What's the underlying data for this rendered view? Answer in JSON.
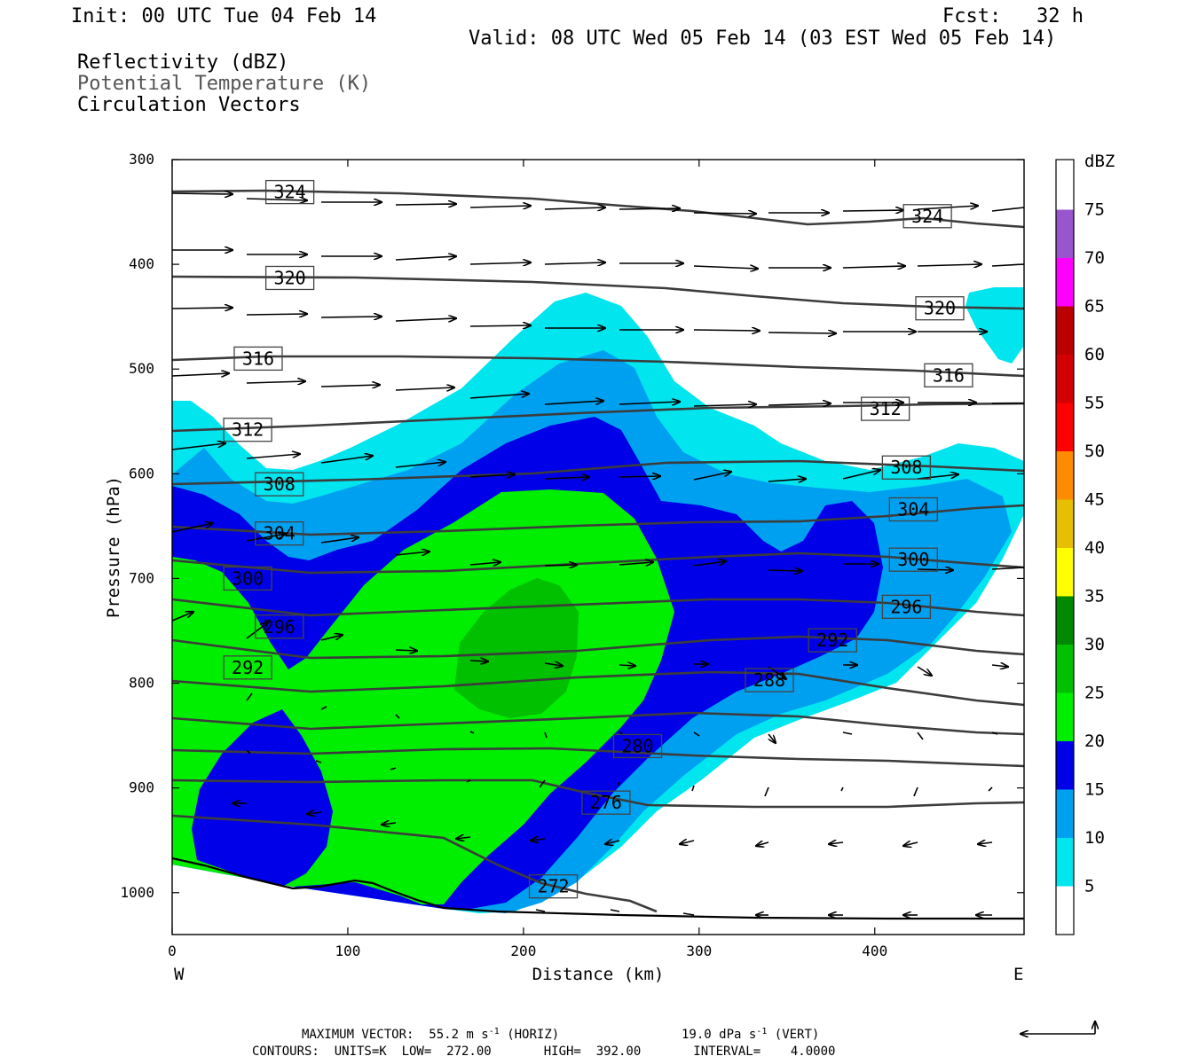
{
  "header": {
    "init": "Init: 00 UTC Tue 04 Feb 14",
    "fcst": "Fcst:   32 h",
    "valid": "Valid: 08 UTC Wed 05 Feb 14 (03 EST Wed 05 Feb 14)",
    "field1": "Reflectivity (dBZ)",
    "field2": "Potential Temperature (K)",
    "field3": "Circulation Vectors"
  },
  "axes": {
    "ylabel": "Pressure (hPa)",
    "xlabel": "Distance (km)",
    "west": "W",
    "east": "E",
    "colorbar_unit": "dBZ"
  },
  "footer": {
    "line1a": "MAXIMUM VECTOR:  55.2 m s",
    "line1a_sup": "-1",
    "line1b": " (HORIZ)",
    "line1c": "19.0 dPa s",
    "line1c_sup": "-1",
    "line1d": " (VERT)",
    "line2": "CONTOURS:  UNITS=K  LOW=  272.00       HIGH=  392.00       INTERVAL=    4.0000"
  },
  "chart_data": {
    "type": "contour",
    "xlim": [
      0,
      485
    ],
    "ylim": [
      300,
      1040
    ],
    "y_inverted": true,
    "xticks": [
      0,
      100,
      200,
      300,
      400
    ],
    "yticks": [
      300,
      400,
      500,
      600,
      700,
      800,
      900,
      1000
    ],
    "colorbar": {
      "levels": [
        5,
        10,
        15,
        20,
        25,
        30,
        35,
        40,
        45,
        50,
        55,
        60,
        65,
        70,
        75
      ],
      "colors": [
        "#00e5ee",
        "#00a0f0",
        "#0000e8",
        "#00ee00",
        "#00c000",
        "#008800",
        "#ffff00",
        "#e6bf00",
        "#ff8c00",
        "#ff0000",
        "#d20000",
        "#bb0000",
        "#ff00ff",
        "#9955cc",
        "#ffffff"
      ]
    },
    "theta_labels": [
      {
        "value": "324",
        "x": 67,
        "p": 331
      },
      {
        "value": "324",
        "x": 430,
        "p": 354
      },
      {
        "value": "320",
        "x": 67,
        "p": 413
      },
      {
        "value": "320",
        "x": 437,
        "p": 442
      },
      {
        "value": "316",
        "x": 49,
        "p": 490
      },
      {
        "value": "316",
        "x": 442,
        "p": 506
      },
      {
        "value": "312",
        "x": 43,
        "p": 558
      },
      {
        "value": "312",
        "x": 406,
        "p": 538
      },
      {
        "value": "308",
        "x": 61,
        "p": 610
      },
      {
        "value": "308",
        "x": 418,
        "p": 594
      },
      {
        "value": "304",
        "x": 61,
        "p": 657
      },
      {
        "value": "304",
        "x": 422,
        "p": 634
      },
      {
        "value": "300",
        "x": 43,
        "p": 700
      },
      {
        "value": "300",
        "x": 422,
        "p": 682
      },
      {
        "value": "296",
        "x": 61,
        "p": 746
      },
      {
        "value": "296",
        "x": 418,
        "p": 727
      },
      {
        "value": "292",
        "x": 43,
        "p": 785
      },
      {
        "value": "292",
        "x": 376,
        "p": 759
      },
      {
        "value": "288",
        "x": 340,
        "p": 797
      },
      {
        "value": "280",
        "x": 265,
        "p": 860
      },
      {
        "value": "276",
        "x": 247,
        "p": 914
      },
      {
        "value": "272",
        "x": 217,
        "p": 994
      }
    ],
    "max_vector": {
      "horiz": "55.2 m s-1",
      "vert": "19.0 dPa s-1"
    },
    "contours": {
      "units": "K",
      "low": 272.0,
      "high": 392.0,
      "interval": 4.0
    }
  }
}
